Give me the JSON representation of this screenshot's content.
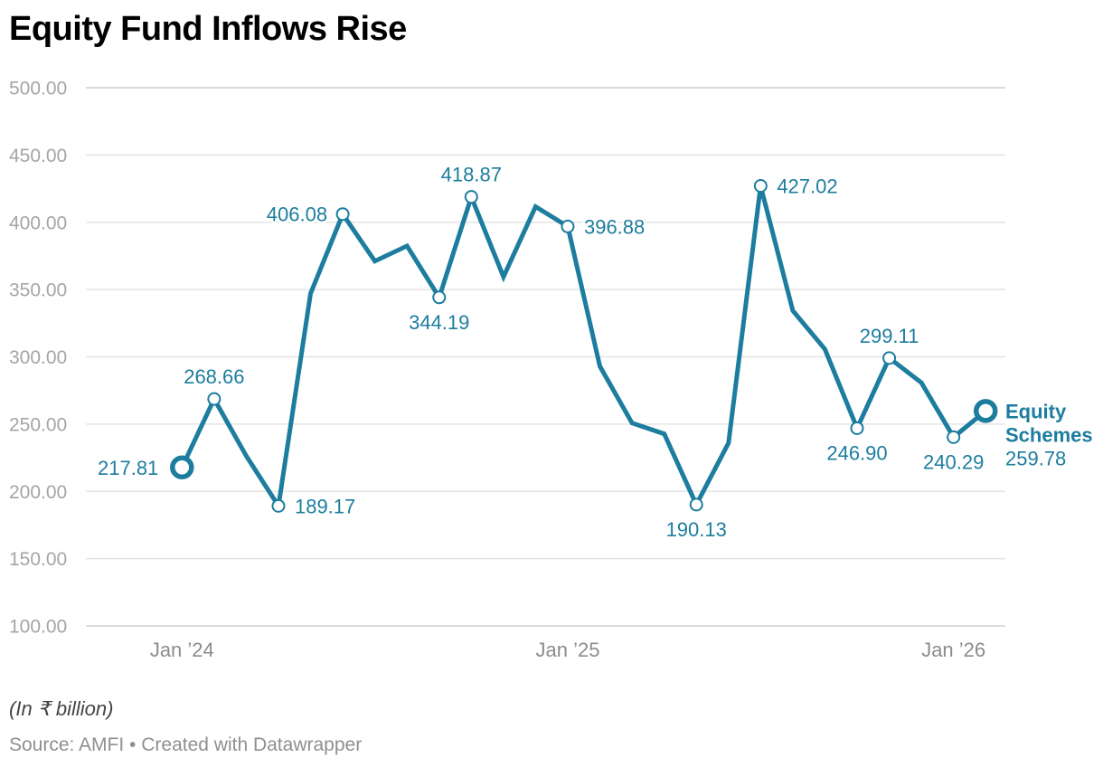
{
  "title": "Equity Fund Inflows Rise",
  "footer": {
    "unit_note": "(In ₹ billion)",
    "source": "Source: AMFI • Created with Datawrapper"
  },
  "colors": {
    "line": "#1d7d9e",
    "value_label": "#1d7d9e",
    "grid_inner": "#e4e4e4",
    "grid_outer": "#cfcfcf",
    "y_axis_text": "#a5a5a5",
    "x_axis_text": "#8c8c8c",
    "background": "#ffffff"
  },
  "chart_data": {
    "type": "line",
    "title": "Equity Fund Inflows Rise",
    "unit": "₹ billion",
    "series_name": "Equity Schemes",
    "grid": true,
    "ylim": [
      100,
      500
    ],
    "y_ticks": [
      "500.00",
      "450.00",
      "400.00",
      "350.00",
      "300.00",
      "250.00",
      "200.00",
      "150.00",
      "100.00"
    ],
    "x_ticks": [
      {
        "index": 0,
        "label": "Jan ’24"
      },
      {
        "index": 12,
        "label": "Jan ’25"
      },
      {
        "index": 24,
        "label": "Jan ’26"
      }
    ],
    "legend_position": "end-of-line",
    "end_label": {
      "line1": "Equity",
      "line2": "Schemes",
      "value": "259.78"
    },
    "points": [
      {
        "month": "Jan 2024",
        "value": 217.81,
        "label": "217.81",
        "labelPos": "left",
        "marker": "big"
      },
      {
        "month": "Feb 2024",
        "value": 268.66,
        "label": "268.66",
        "labelPos": "above",
        "marker": "small"
      },
      {
        "month": "Mar 2024",
        "value": 226.3
      },
      {
        "month": "Apr 2024",
        "value": 189.17,
        "label": "189.17",
        "labelPos": "right",
        "marker": "small"
      },
      {
        "month": "May 2024",
        "value": 347.0
      },
      {
        "month": "Jun 2024",
        "value": 406.08,
        "label": "406.08",
        "labelPos": "left",
        "marker": "small"
      },
      {
        "month": "Jul 2024",
        "value": 371.1
      },
      {
        "month": "Aug 2024",
        "value": 382.4
      },
      {
        "month": "Sep 2024",
        "value": 344.19,
        "label": "344.19",
        "labelPos": "below",
        "marker": "small"
      },
      {
        "month": "Oct 2024",
        "value": 418.87,
        "label": "418.87",
        "labelPos": "above",
        "marker": "small"
      },
      {
        "month": "Nov 2024",
        "value": 359.4
      },
      {
        "month": "Dec 2024",
        "value": 411.6
      },
      {
        "month": "Jan 2025",
        "value": 396.88,
        "label": "396.88",
        "labelPos": "right",
        "marker": "small"
      },
      {
        "month": "Feb 2025",
        "value": 293.0
      },
      {
        "month": "Mar 2025",
        "value": 250.8
      },
      {
        "month": "Apr 2025",
        "value": 242.7
      },
      {
        "month": "May 2025",
        "value": 190.13,
        "label": "190.13",
        "labelPos": "below",
        "marker": "small"
      },
      {
        "month": "Jun 2025",
        "value": 235.9
      },
      {
        "month": "Jul 2025",
        "value": 427.02,
        "label": "427.02",
        "labelPos": "right",
        "marker": "small"
      },
      {
        "month": "Aug 2025",
        "value": 334.3
      },
      {
        "month": "Sep 2025",
        "value": 305.7
      },
      {
        "month": "Oct 2025",
        "value": 246.9,
        "label": "246.90",
        "labelPos": "below",
        "marker": "small"
      },
      {
        "month": "Nov 2025",
        "value": 299.11,
        "label": "299.11",
        "labelPos": "above",
        "marker": "small"
      },
      {
        "month": "Dec 2025",
        "value": 280.8
      },
      {
        "month": "Jan 2026",
        "value": 240.29,
        "label": "240.29",
        "labelPos": "below",
        "marker": "small"
      },
      {
        "month": "Feb 2026",
        "value": 259.78,
        "label": "259.78",
        "labelPos": "legend",
        "marker": "big"
      }
    ]
  }
}
